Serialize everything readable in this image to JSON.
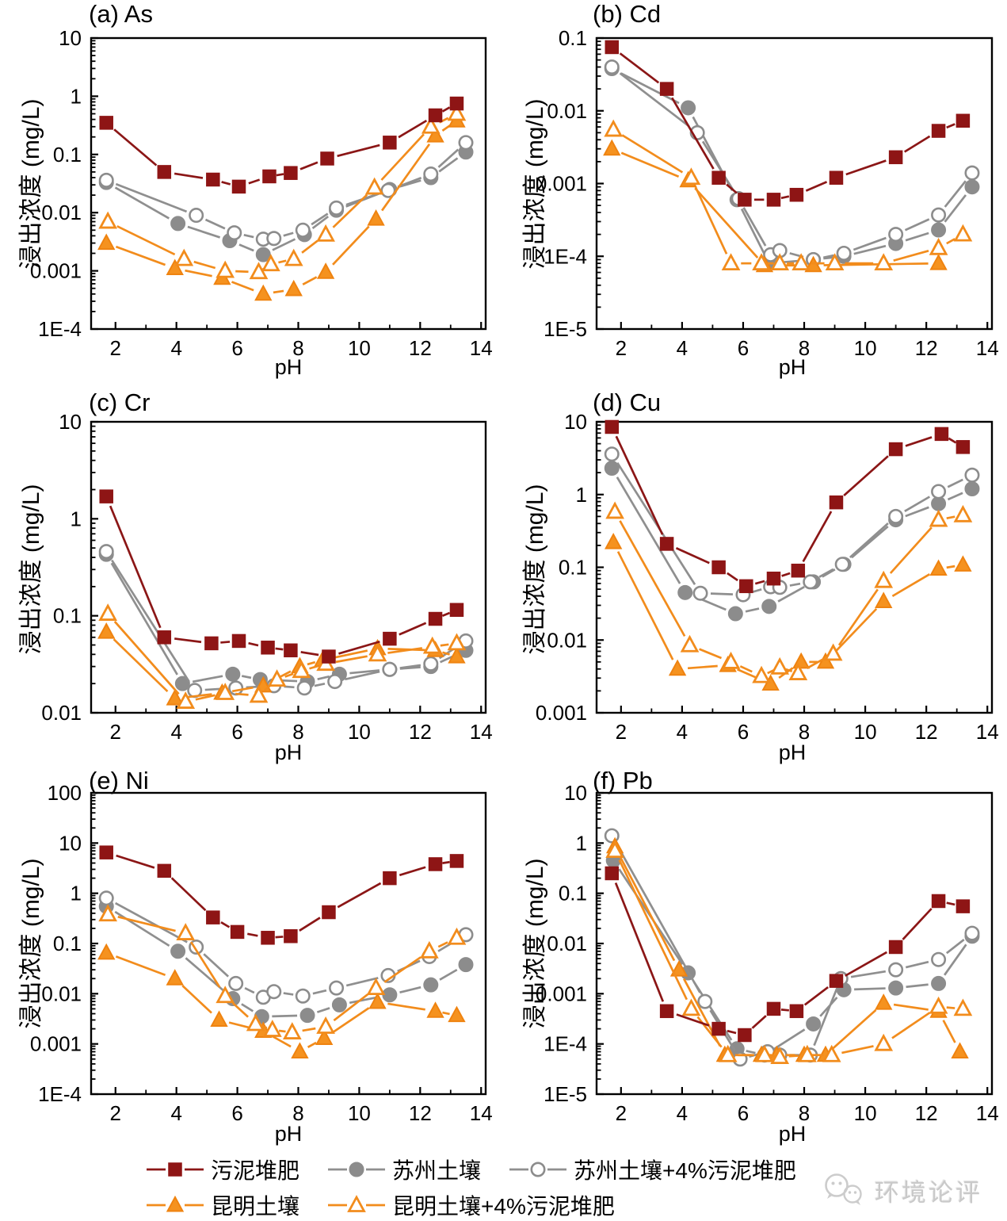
{
  "watermark": {
    "label": "环境论评"
  },
  "styles": {
    "sludge": {
      "marker": "square",
      "line": "#8b1616",
      "fill": "#8e1515",
      "stroke": "#8e1515",
      "open": false
    },
    "suzhou": {
      "marker": "circle",
      "line": "#8f8f8f",
      "fill": "#8c8c8c",
      "stroke": "#8c8c8c",
      "open": false
    },
    "suzhou4": {
      "marker": "circle",
      "line": "#8f8f8f",
      "fill": "#ffffff",
      "stroke": "#8c8c8c",
      "open": true
    },
    "kunming": {
      "marker": "triangle",
      "line": "#f28c1c",
      "fill": "#f5921f",
      "stroke": "#ef8310",
      "open": false
    },
    "kunming4": {
      "marker": "triangle",
      "line": "#f28c1c",
      "fill": "#ffffff",
      "stroke": "#f28c1c",
      "open": true
    }
  },
  "legend": {
    "items": [
      {
        "key": "sludge",
        "label": "污泥堆肥"
      },
      {
        "key": "suzhou",
        "label": "苏州土壤"
      },
      {
        "key": "suzhou4",
        "label": "苏州土壤+4%污泥堆肥"
      },
      {
        "key": "kunming",
        "label": "昆明土壤"
      },
      {
        "key": "kunming4",
        "label": "昆明土壤+4%污泥堆肥"
      }
    ]
  },
  "chart_data": [
    {
      "type": "line",
      "title": "(a) As",
      "xlabel": "pH",
      "ylabel": "浸出浓度 (mg/L)",
      "xlim": [
        1.2,
        14.15
      ],
      "ylim": [
        0.0001,
        10
      ],
      "grid": false,
      "xticks": [
        "2",
        "4",
        "6",
        "8",
        "10",
        "12",
        "14"
      ],
      "xtick_values": [
        2,
        4,
        6,
        8,
        10,
        12,
        14
      ],
      "minor_xticks": [
        3,
        5,
        7,
        9,
        11,
        13
      ],
      "yticks": [
        "10",
        "1",
        "0.1",
        "0.01",
        "0.001",
        "1E-4"
      ],
      "series": [
        {
          "key": "suzhou",
          "name": "苏州土壤",
          "x": [
            1.7,
            4.05,
            5.75,
            6.85,
            8.2,
            9.25,
            11.0,
            12.35,
            13.5
          ],
          "y": [
            0.033,
            0.0065,
            0.0033,
            0.0019,
            0.0042,
            0.011,
            0.025,
            0.04,
            0.11
          ]
        },
        {
          "key": "suzhou4",
          "name": "苏州土壤+4%污泥堆肥",
          "x": [
            1.7,
            4.65,
            5.9,
            6.85,
            7.2,
            8.15,
            9.25,
            10.95,
            12.35,
            13.5
          ],
          "y": [
            0.036,
            0.009,
            0.0045,
            0.0035,
            0.0036,
            0.005,
            0.012,
            0.024,
            0.046,
            0.16
          ]
        },
        {
          "key": "kunming",
          "name": "昆明土壤",
          "x": [
            1.7,
            3.95,
            5.5,
            6.85,
            7.85,
            8.9,
            10.55,
            12.5,
            13.2
          ],
          "y": [
            0.003,
            0.0011,
            0.00075,
            0.0004,
            0.00048,
            0.00095,
            0.0078,
            0.21,
            0.38
          ]
        },
        {
          "key": "kunming4",
          "name": "昆明土壤+4%污泥堆肥",
          "x": [
            1.75,
            4.25,
            5.6,
            6.7,
            7.1,
            7.85,
            8.9,
            10.5,
            12.35,
            13.2
          ],
          "y": [
            0.007,
            0.0016,
            0.001,
            0.00095,
            0.0013,
            0.0016,
            0.0042,
            0.027,
            0.3,
            0.5
          ]
        },
        {
          "key": "sludge",
          "name": "污泥堆肥",
          "x": [
            1.7,
            3.6,
            5.2,
            6.05,
            7.05,
            7.75,
            8.95,
            11.0,
            12.5,
            13.2
          ],
          "y": [
            0.35,
            0.05,
            0.037,
            0.028,
            0.042,
            0.048,
            0.085,
            0.16,
            0.47,
            0.75
          ]
        }
      ]
    },
    {
      "type": "line",
      "title": "(b) Cd",
      "xlabel": "pH",
      "ylabel": "浸出浓度 (mg/L)",
      "xlim": [
        1.2,
        14.15
      ],
      "ylim": [
        1e-05,
        0.1
      ],
      "grid": false,
      "xticks": [
        "2",
        "4",
        "6",
        "8",
        "10",
        "12",
        "14"
      ],
      "xtick_values": [
        2,
        4,
        6,
        8,
        10,
        12,
        14
      ],
      "minor_xticks": [
        3,
        5,
        7,
        9,
        11,
        13
      ],
      "yticks": [
        "0.1",
        "0.01",
        "0.001",
        "1E-4",
        "1E-5"
      ],
      "series": [
        {
          "key": "suzhou",
          "name": "苏州土壤",
          "x": [
            1.7,
            4.2,
            5.8,
            6.85,
            8.3,
            9.3,
            11.0,
            12.4,
            13.5
          ],
          "y": [
            0.038,
            0.011,
            0.0006,
            8e-05,
            9e-05,
            0.0001,
            0.00015,
            0.00023,
            0.0009
          ]
        },
        {
          "key": "suzhou4",
          "name": "苏州土壤+4%污泥堆肥",
          "x": [
            1.7,
            4.5,
            5.85,
            6.9,
            7.2,
            8.3,
            9.3,
            11.0,
            12.4,
            13.5
          ],
          "y": [
            0.04,
            0.005,
            0.00062,
            0.000105,
            0.00012,
            9e-05,
            0.00011,
            0.0002,
            0.00037,
            0.0014
          ]
        },
        {
          "key": "kunming",
          "name": "昆明土壤",
          "x": [
            1.7,
            4.2,
            6.7,
            8.3,
            12.4
          ],
          "y": [
            0.003,
            0.0011,
            7.5e-05,
            7.5e-05,
            8e-05
          ]
        },
        {
          "key": "kunming4",
          "name": "昆明土壤+4%污泥堆肥",
          "x": [
            1.75,
            4.3,
            5.6,
            6.6,
            7.2,
            7.9,
            9.0,
            10.6,
            12.4,
            13.2
          ],
          "y": [
            0.0055,
            0.0012,
            8e-05,
            8e-05,
            8e-05,
            8e-05,
            8e-05,
            8e-05,
            0.00013,
            0.0002
          ]
        },
        {
          "key": "sludge",
          "name": "污泥堆肥",
          "x": [
            1.7,
            3.5,
            5.2,
            6.05,
            7.0,
            7.75,
            9.05,
            11.0,
            12.4,
            13.2
          ],
          "y": [
            0.075,
            0.02,
            0.0012,
            0.0006,
            0.0006,
            0.0007,
            0.0012,
            0.0023,
            0.0053,
            0.0073
          ]
        }
      ]
    },
    {
      "type": "line",
      "title": "(c) Cr",
      "xlabel": "pH",
      "ylabel": "浸出浓度 (mg/L)",
      "xlim": [
        1.2,
        14.15
      ],
      "ylim": [
        0.01,
        10
      ],
      "grid": false,
      "xticks": [
        "2",
        "4",
        "6",
        "8",
        "10",
        "12",
        "14"
      ],
      "xtick_values": [
        2,
        4,
        6,
        8,
        10,
        12,
        14
      ],
      "minor_xticks": [
        3,
        5,
        7,
        9,
        11,
        13
      ],
      "yticks": [
        "10",
        "1",
        "0.1",
        "0.01"
      ],
      "series": [
        {
          "key": "suzhou",
          "name": "苏州土壤",
          "x": [
            1.7,
            4.2,
            5.85,
            6.75,
            8.3,
            9.35,
            11.0,
            12.35,
            13.5
          ],
          "y": [
            0.43,
            0.02,
            0.025,
            0.022,
            0.021,
            0.025,
            0.028,
            0.03,
            0.044
          ]
        },
        {
          "key": "suzhou4",
          "name": "苏州土壤+4%污泥堆肥",
          "x": [
            1.7,
            4.6,
            5.95,
            7.2,
            8.2,
            9.2,
            11.0,
            12.35,
            13.5
          ],
          "y": [
            0.46,
            0.017,
            0.018,
            0.019,
            0.018,
            0.021,
            0.028,
            0.032,
            0.055
          ]
        },
        {
          "key": "kunming",
          "name": "昆明土壤",
          "x": [
            1.7,
            3.95,
            5.5,
            6.85,
            8.05,
            8.8,
            10.6,
            12.5,
            13.2
          ],
          "y": [
            0.068,
            0.014,
            0.016,
            0.019,
            0.03,
            0.035,
            0.046,
            0.044,
            0.038
          ]
        },
        {
          "key": "kunming4",
          "name": "昆明土壤+4%污泥堆肥",
          "x": [
            1.75,
            4.3,
            5.6,
            6.7,
            7.3,
            8.1,
            8.9,
            10.6,
            12.4,
            13.2
          ],
          "y": [
            0.105,
            0.013,
            0.016,
            0.015,
            0.022,
            0.027,
            0.032,
            0.04,
            0.048,
            0.052
          ]
        },
        {
          "key": "sludge",
          "name": "污泥堆肥",
          "x": [
            1.7,
            3.6,
            5.15,
            6.05,
            7.0,
            7.75,
            9.0,
            11.0,
            12.5,
            13.2
          ],
          "y": [
            1.7,
            0.06,
            0.052,
            0.055,
            0.047,
            0.044,
            0.038,
            0.058,
            0.093,
            0.115
          ]
        }
      ]
    },
    {
      "type": "line",
      "title": "(d) Cu",
      "xlabel": "pH",
      "ylabel": "浸出浓度 (mg/L)",
      "xlim": [
        1.2,
        14.15
      ],
      "ylim": [
        0.001,
        10
      ],
      "grid": false,
      "xticks": [
        "2",
        "4",
        "6",
        "8",
        "10",
        "12",
        "14"
      ],
      "xtick_values": [
        2,
        4,
        6,
        8,
        10,
        12,
        14
      ],
      "minor_xticks": [
        3,
        5,
        7,
        9,
        11,
        13
      ],
      "yticks": [
        "10",
        "1",
        "0.1",
        "0.01",
        "0.001"
      ],
      "series": [
        {
          "key": "suzhou",
          "name": "苏州土壤",
          "x": [
            1.7,
            4.1,
            5.75,
            6.85,
            8.3,
            9.3,
            11.0,
            12.4,
            13.5
          ],
          "y": [
            2.3,
            0.045,
            0.023,
            0.029,
            0.063,
            0.11,
            0.45,
            0.75,
            1.2
          ]
        },
        {
          "key": "suzhou4",
          "name": "苏州土壤+4%污泥堆肥",
          "x": [
            1.7,
            4.6,
            6.0,
            6.9,
            7.2,
            8.2,
            9.25,
            11.0,
            12.4,
            13.5
          ],
          "y": [
            3.6,
            0.044,
            0.042,
            0.054,
            0.053,
            0.063,
            0.11,
            0.5,
            1.1,
            1.85
          ]
        },
        {
          "key": "kunming",
          "name": "昆明土壤",
          "x": [
            1.75,
            3.85,
            5.5,
            6.9,
            7.9,
            8.7,
            10.6,
            12.4,
            13.2
          ],
          "y": [
            0.22,
            0.004,
            0.0045,
            0.0025,
            0.005,
            0.005,
            0.034,
            0.095,
            0.108
          ]
        },
        {
          "key": "kunming4",
          "name": "昆明土壤+4%污泥堆肥",
          "x": [
            1.8,
            4.25,
            5.6,
            6.6,
            7.2,
            7.8,
            8.95,
            10.6,
            12.4,
            13.2
          ],
          "y": [
            0.58,
            0.0085,
            0.005,
            0.0032,
            0.0042,
            0.0035,
            0.0065,
            0.065,
            0.45,
            0.52
          ]
        },
        {
          "key": "sludge",
          "name": "污泥堆肥",
          "x": [
            1.7,
            3.5,
            5.2,
            6.1,
            7.0,
            7.8,
            9.05,
            11.0,
            12.5,
            13.2
          ],
          "y": [
            8.5,
            0.21,
            0.1,
            0.055,
            0.07,
            0.09,
            0.78,
            4.2,
            6.8,
            4.5
          ]
        }
      ]
    },
    {
      "type": "line",
      "title": "(e) Ni",
      "xlabel": "pH",
      "ylabel": "浸出浓度 (mg/L)",
      "xlim": [
        1.2,
        14.15
      ],
      "ylim": [
        0.0001,
        100
      ],
      "grid": false,
      "xticks": [
        "2",
        "4",
        "6",
        "8",
        "10",
        "12",
        "14"
      ],
      "xtick_values": [
        2,
        4,
        6,
        8,
        10,
        12,
        14
      ],
      "minor_xticks": [
        3,
        5,
        7,
        9,
        11,
        13
      ],
      "yticks": [
        "100",
        "10",
        "1",
        "0.1",
        "0.01",
        "0.001",
        "1E-4"
      ],
      "series": [
        {
          "key": "suzhou",
          "name": "苏州土壤",
          "x": [
            1.7,
            4.05,
            5.85,
            6.8,
            8.3,
            9.35,
            11.0,
            12.35,
            13.5
          ],
          "y": [
            0.55,
            0.07,
            0.008,
            0.0035,
            0.0037,
            0.006,
            0.0095,
            0.015,
            0.038
          ]
        },
        {
          "key": "suzhou4",
          "name": "苏州土壤+4%污泥堆肥",
          "x": [
            1.7,
            4.65,
            5.95,
            6.85,
            7.2,
            8.15,
            9.25,
            10.95,
            12.3,
            13.5
          ],
          "y": [
            0.8,
            0.085,
            0.016,
            0.0085,
            0.011,
            0.009,
            0.013,
            0.023,
            0.055,
            0.15
          ]
        },
        {
          "key": "kunming",
          "name": "昆明土壤",
          "x": [
            1.7,
            3.95,
            5.4,
            6.85,
            8.05,
            8.85,
            10.6,
            12.5,
            13.2
          ],
          "y": [
            0.065,
            0.02,
            0.003,
            0.0018,
            0.0007,
            0.0013,
            0.0068,
            0.0045,
            0.0037
          ]
        },
        {
          "key": "kunming4",
          "name": "昆明土壤+4%污泥堆肥",
          "x": [
            1.75,
            4.3,
            5.6,
            6.6,
            7.15,
            7.8,
            8.9,
            10.55,
            12.3,
            13.2
          ],
          "y": [
            0.38,
            0.16,
            0.009,
            0.0025,
            0.0019,
            0.0017,
            0.0022,
            0.013,
            0.07,
            0.13
          ]
        },
        {
          "key": "sludge",
          "name": "污泥堆肥",
          "x": [
            1.7,
            3.6,
            5.2,
            6.0,
            7.0,
            7.75,
            9.0,
            11.0,
            12.5,
            13.2
          ],
          "y": [
            6.5,
            2.8,
            0.33,
            0.17,
            0.13,
            0.14,
            0.42,
            2.0,
            3.8,
            4.4
          ]
        }
      ]
    },
    {
      "type": "line",
      "title": "(f) Pb",
      "xlabel": "pH",
      "ylabel": "浸出浓度 (mg/L)",
      "xlim": [
        1.2,
        14.15
      ],
      "ylim": [
        1e-05,
        10
      ],
      "grid": false,
      "xticks": [
        "2",
        "4",
        "6",
        "8",
        "10",
        "12",
        "14"
      ],
      "xtick_values": [
        2,
        4,
        6,
        8,
        10,
        12,
        14
      ],
      "minor_xticks": [
        3,
        5,
        7,
        9,
        11,
        13
      ],
      "yticks": [
        "10",
        "1",
        "0.1",
        "0.01",
        "0.001",
        "1E-4",
        "1E-5"
      ],
      "series": [
        {
          "key": "suzhou",
          "name": "苏州土壤",
          "x": [
            1.75,
            4.2,
            5.8,
            6.7,
            8.3,
            9.3,
            11.0,
            12.4,
            13.5
          ],
          "y": [
            0.45,
            0.0026,
            8e-05,
            6e-05,
            0.00025,
            0.0012,
            0.0013,
            0.0016,
            0.014
          ]
        },
        {
          "key": "suzhou4",
          "name": "苏州土壤+4%污泥堆肥",
          "x": [
            1.7,
            4.75,
            5.9,
            6.8,
            7.2,
            8.2,
            9.2,
            11.0,
            12.4,
            13.5
          ],
          "y": [
            1.4,
            0.0007,
            5e-05,
            7e-05,
            6e-05,
            6e-05,
            0.002,
            0.003,
            0.0048,
            0.016
          ]
        },
        {
          "key": "kunming",
          "name": "昆明土壤",
          "x": [
            1.8,
            3.9,
            5.4,
            6.6,
            7.1,
            8.0,
            8.7,
            10.6,
            12.4,
            13.1
          ],
          "y": [
            0.85,
            0.003,
            6e-05,
            6e-05,
            6e-05,
            6e-05,
            6e-05,
            0.00065,
            0.00045,
            7e-05
          ]
        },
        {
          "key": "kunming4",
          "name": "昆明土壤+4%污泥堆肥",
          "x": [
            1.8,
            4.3,
            5.5,
            6.7,
            7.2,
            8.1,
            8.9,
            10.6,
            12.4,
            13.2
          ],
          "y": [
            0.7,
            0.0005,
            6e-05,
            6e-05,
            5.5e-05,
            6e-05,
            6e-05,
            0.0001,
            0.00055,
            0.0005
          ]
        },
        {
          "key": "sludge",
          "name": "污泥堆肥",
          "x": [
            1.7,
            3.5,
            5.2,
            6.05,
            7.0,
            7.75,
            9.05,
            11.0,
            12.4,
            13.2
          ],
          "y": [
            0.25,
            0.00045,
            0.0002,
            0.00015,
            0.0005,
            0.00045,
            0.0018,
            0.0085,
            0.07,
            0.055
          ]
        }
      ]
    }
  ]
}
